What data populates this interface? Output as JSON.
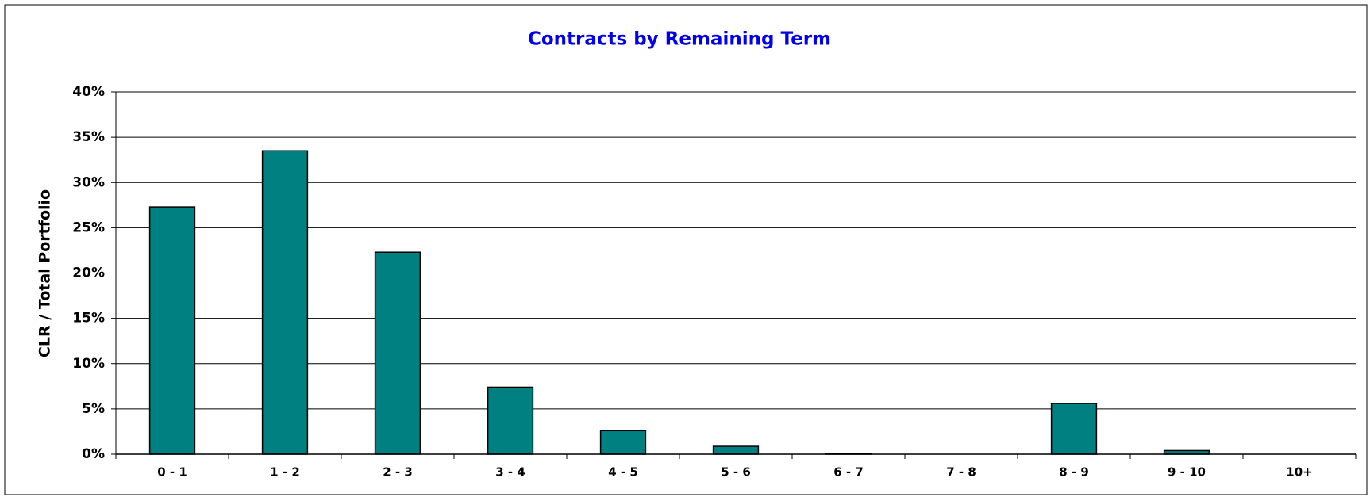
{
  "chart_data": {
    "type": "bar",
    "title": "Contracts by Remaining Term",
    "y_label": "CLR / Total Portfolio",
    "categories": [
      "0 - 1",
      "1 - 2",
      "2 - 3",
      "3 - 4",
      "4 - 5",
      "5 - 6",
      "6 - 7",
      "7 - 8",
      "8 - 9",
      "9 - 10",
      "10+"
    ],
    "values": [
      27.3,
      33.5,
      22.3,
      7.4,
      2.6,
      0.87,
      0.1,
      0,
      5.6,
      0.4,
      0
    ],
    "color": "#008080",
    "ylim": [
      0,
      40
    ],
    "yticks": [
      {
        "value": 0,
        "label": "0%"
      },
      {
        "value": 5,
        "label": "5%"
      },
      {
        "value": 10,
        "label": "10%"
      },
      {
        "value": 15,
        "label": "15%"
      },
      {
        "value": 20,
        "label": "20%"
      },
      {
        "value": 25,
        "label": "25%"
      },
      {
        "value": 30,
        "label": "30%"
      },
      {
        "value": 35,
        "label": "35%"
      },
      {
        "value": 40,
        "label": "40%"
      }
    ],
    "grid": true
  }
}
